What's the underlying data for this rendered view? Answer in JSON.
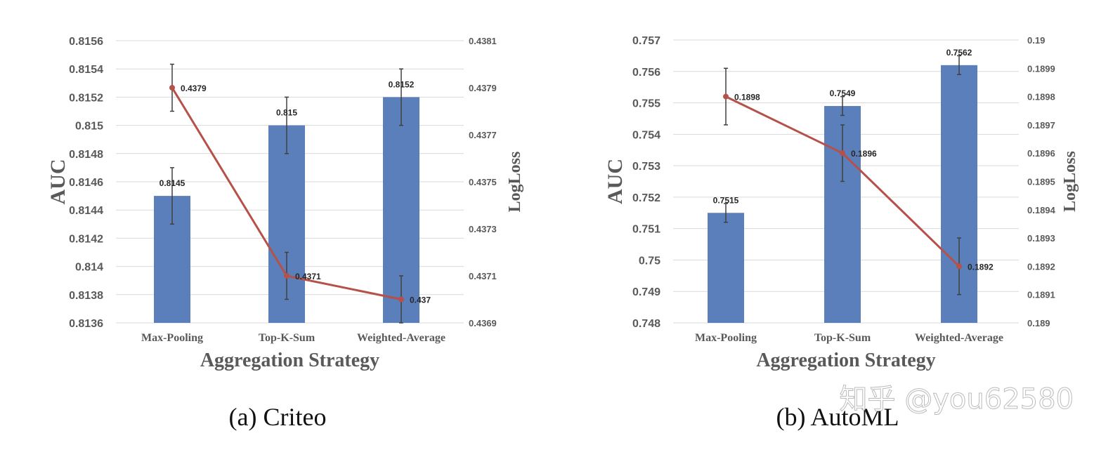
{
  "colors": {
    "bar": "#5a7fba",
    "line": "#b6514a",
    "error_bar": "#404040",
    "grid": "#d9d9d9",
    "tick_text": "#595959"
  },
  "watermark": "知乎 @you62580",
  "chart_data": [
    {
      "type": "bar+line",
      "caption": "(a)  Criteo",
      "xlabel": "Aggregation Strategy",
      "ylabel": "AUC",
      "y2label": "LogLoss",
      "categories": [
        "Max-Pooling",
        "Top-K-Sum",
        "Weighted-Average"
      ],
      "ylim": [
        0.8136,
        0.8156
      ],
      "yticks": [
        "0.8136",
        "0.8138",
        "0.814",
        "0.8142",
        "0.8144",
        "0.8146",
        "0.8148",
        "0.815",
        "0.8152",
        "0.8154",
        "0.8156"
      ],
      "y2lim": [
        0.4369,
        0.4381
      ],
      "y2ticks": [
        "0.4369",
        "0.4371",
        "0.4373",
        "0.4375",
        "0.4377",
        "0.4379",
        "0.4381"
      ],
      "grid": true,
      "series": [
        {
          "name": "AUC",
          "type": "bar",
          "axis": "left",
          "values": [
            0.8145,
            0.815,
            0.8152
          ],
          "labels": [
            "0.8145",
            "0.815",
            "0.8152"
          ],
          "error": [
            0.0002,
            0.0002,
            0.0002
          ]
        },
        {
          "name": "LogLoss",
          "type": "line",
          "axis": "right",
          "values": [
            0.4379,
            0.4371,
            0.437
          ],
          "labels": [
            "0.4379",
            "0.4371",
            "0.437"
          ],
          "error": [
            0.0001,
            0.0001,
            0.0001
          ]
        }
      ]
    },
    {
      "type": "bar+line",
      "caption": "(b)  AutoML",
      "xlabel": "Aggregation Strategy",
      "ylabel": "AUC",
      "y2label": "LogLoss",
      "categories": [
        "Max-Pooling",
        "Top-K-Sum",
        "Weighted-Average"
      ],
      "ylim": [
        0.748,
        0.757
      ],
      "yticks": [
        "0.748",
        "0.749",
        "0.75",
        "0.751",
        "0.752",
        "0.753",
        "0.754",
        "0.755",
        "0.756",
        "0.757"
      ],
      "y2lim": [
        0.189,
        0.19
      ],
      "y2ticks": [
        "0.189",
        "0.1891",
        "0.1892",
        "0.1893",
        "0.1894",
        "0.1895",
        "0.1896",
        "0.1897",
        "0.1898",
        "0.1899",
        "0.19"
      ],
      "grid": true,
      "series": [
        {
          "name": "AUC",
          "type": "bar",
          "axis": "left",
          "values": [
            0.7515,
            0.7549,
            0.7562
          ],
          "labels": [
            "0.7515",
            "0.7549",
            "0.7562"
          ],
          "error": [
            0.0003,
            0.0003,
            0.0003
          ]
        },
        {
          "name": "LogLoss",
          "type": "line",
          "axis": "right",
          "values": [
            0.1898,
            0.1896,
            0.1892
          ],
          "labels": [
            "0.1898",
            "0.1896",
            "0.1892"
          ],
          "error": [
            0.0001,
            0.0001,
            0.0001
          ]
        }
      ]
    }
  ]
}
